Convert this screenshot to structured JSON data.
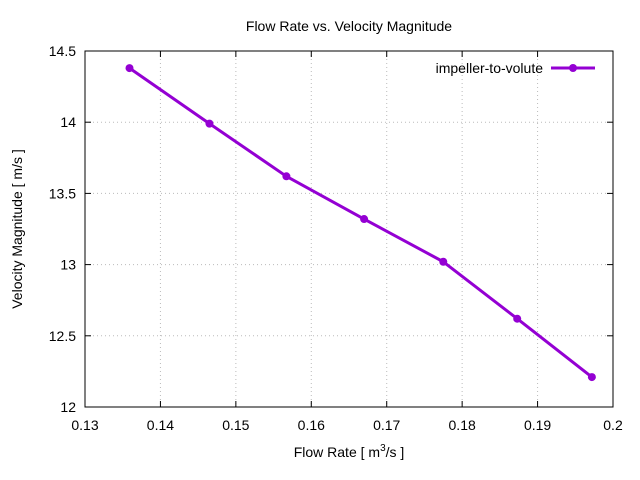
{
  "chart_data": {
    "type": "line",
    "title": "Flow Rate vs. Velocity Magnitude",
    "xlabel_main": "Flow Rate [ m",
    "xlabel_sup": "3",
    "xlabel_tail": "/s ]",
    "ylabel": "Velocity Magnitude [ m/s ]",
    "xlim": [
      0.13,
      0.2
    ],
    "ylim": [
      12,
      14.5
    ],
    "xticks": [
      "0.13",
      "0.14",
      "0.15",
      "0.16",
      "0.17",
      "0.18",
      "0.19",
      "0.2"
    ],
    "yticks": [
      "12",
      "12.5",
      "13",
      "13.5",
      "14",
      "14.5"
    ],
    "grid": true,
    "legend_position": "top-right",
    "series": [
      {
        "name": "impeller-to-volute",
        "color": "#9400d3",
        "x": [
          0.1359,
          0.1465,
          0.1567,
          0.167,
          0.1775,
          0.1873,
          0.1972
        ],
        "y": [
          14.38,
          13.99,
          13.62,
          13.32,
          13.02,
          12.62,
          12.21
        ]
      }
    ]
  }
}
